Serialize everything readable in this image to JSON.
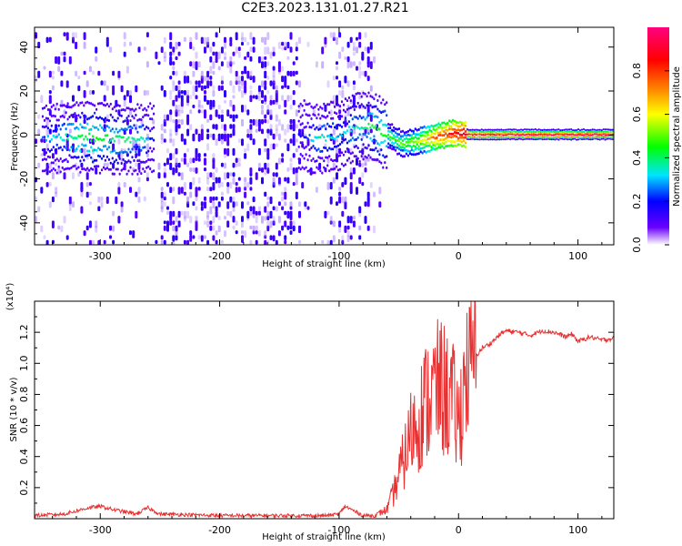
{
  "title": "C2E3.2023.131.01.27.R21",
  "colors": {
    "snr_line": "#e83030",
    "frame": "#000000"
  },
  "chart_data": [
    {
      "type": "heatmap",
      "xlabel": "Height of straight line (km)",
      "ylabel": "Frequency (Hz)",
      "xlim": [
        -355,
        130
      ],
      "ylim": [
        -50,
        49
      ],
      "x_ticks": [
        -300,
        -200,
        -100,
        0,
        100
      ],
      "y_ticks": [
        -40,
        -20,
        0,
        20,
        40
      ],
      "colorbar": {
        "label": "Normalized spectral amplitude",
        "range": [
          0,
          1
        ],
        "ticks": [
          0.0,
          0.2,
          0.4,
          0.6,
          0.8
        ],
        "tick_labels": [
          "0.0",
          "0.2",
          "0.4",
          "0.6",
          "0.8"
        ],
        "colormap": [
          "#ffffff",
          "#6a00ff",
          "#0000ff",
          "#00e5ff",
          "#00ff00",
          "#ffff00",
          "#ff8000",
          "#ff0000",
          "#ff0080"
        ]
      },
      "ridge": [
        {
          "x": -350,
          "f": -2,
          "amp": 0.25
        },
        {
          "x": -330,
          "f": -1,
          "amp": 0.35
        },
        {
          "x": -310,
          "f": -1,
          "amp": 0.45
        },
        {
          "x": -290,
          "f": -2,
          "amp": 0.4
        },
        {
          "x": -265,
          "f": -2,
          "amp": 0.35
        },
        {
          "x": -255,
          "f": -1,
          "amp": 0.15
        },
        {
          "x": -130,
          "f": 0,
          "amp": 0.2
        },
        {
          "x": -120,
          "f": -2,
          "amp": 0.35
        },
        {
          "x": -100,
          "f": 0,
          "amp": 0.3
        },
        {
          "x": -90,
          "f": 3,
          "amp": 0.35
        },
        {
          "x": -75,
          "f": 4,
          "amp": 0.4
        },
        {
          "x": -60,
          "f": 0,
          "amp": 0.45
        },
        {
          "x": -48,
          "f": -4,
          "amp": 0.5
        },
        {
          "x": -35,
          "f": -3,
          "amp": 0.55
        },
        {
          "x": -20,
          "f": -1,
          "amp": 0.75
        },
        {
          "x": -5,
          "f": 1,
          "amp": 0.85
        },
        {
          "x": 10,
          "f": 0,
          "amp": 0.95
        },
        {
          "x": 130,
          "f": 0,
          "amp": 0.97
        }
      ]
    },
    {
      "type": "line",
      "xlabel": "Height of straight line (km)",
      "ylabel": "SNR (10 * v/v)",
      "y_multiplier": "(x10⁴)",
      "xlim": [
        -355,
        130
      ],
      "ylim": [
        0,
        1.4
      ],
      "x_ticks": [
        -300,
        -200,
        -100,
        0,
        100
      ],
      "y_ticks": [
        0.2,
        0.4,
        0.6,
        0.8,
        1.0,
        1.2
      ],
      "y_tick_labels": [
        "0.2",
        "0.4",
        "0.6",
        "0.8",
        "1.0",
        "1.2"
      ],
      "series": [
        {
          "x": [
            -355,
            -330,
            -310,
            -300,
            -290,
            -270,
            -260,
            -250,
            -200,
            -150,
            -110,
            -100,
            -95,
            -80,
            -70,
            -65,
            -60,
            -55,
            -50,
            -45,
            -40,
            -35,
            -30,
            -25,
            -20,
            -15,
            -10,
            -5,
            0,
            5,
            10,
            15,
            20,
            25,
            30,
            35,
            40,
            50,
            60,
            70,
            80,
            90,
            95,
            100,
            110,
            120,
            130
          ],
          "y": [
            0.02,
            0.03,
            0.07,
            0.08,
            0.06,
            0.03,
            0.07,
            0.03,
            0.02,
            0.02,
            0.02,
            0.03,
            0.08,
            0.02,
            0.02,
            0.04,
            0.06,
            0.15,
            0.28,
            0.4,
            0.55,
            0.62,
            0.7,
            0.78,
            0.82,
            0.85,
            0.8,
            0.75,
            0.6,
            0.9,
            1.0,
            1.05,
            1.1,
            1.12,
            1.15,
            1.19,
            1.21,
            1.2,
            1.18,
            1.21,
            1.2,
            1.17,
            1.19,
            1.14,
            1.17,
            1.15,
            1.16
          ]
        }
      ]
    }
  ]
}
